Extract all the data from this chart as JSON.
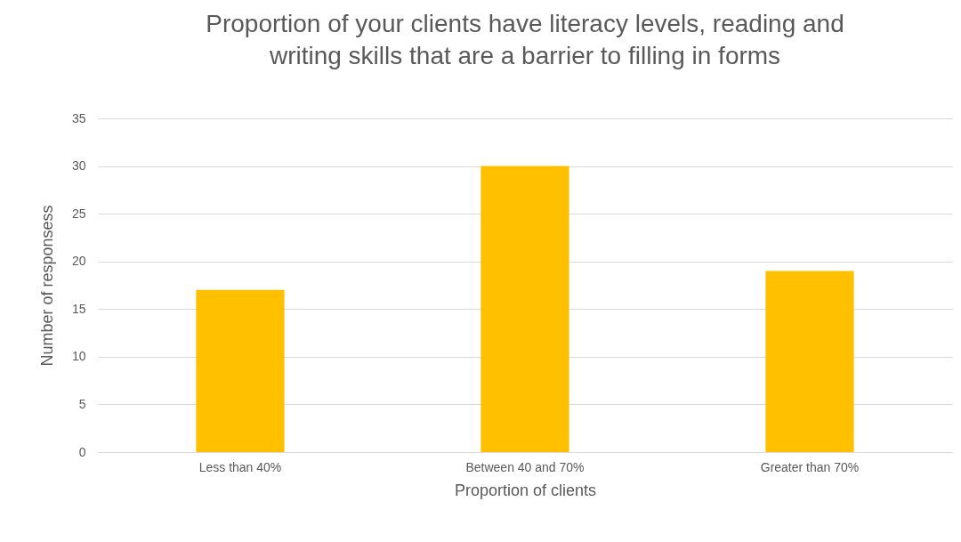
{
  "chart_data": {
    "type": "bar",
    "title": "Proportion of your clients have literacy levels, reading and writing skills that are a barrier to filling in forms",
    "xlabel": "Proportion of clients",
    "ylabel": "Number of responsess",
    "categories": [
      "Less than 40%",
      "Between 40 and 70%",
      "Greater than 70%"
    ],
    "values": [
      17,
      30,
      19
    ],
    "color": "#ffc000",
    "ylim": [
      0,
      35
    ],
    "yticks": [
      0,
      5,
      10,
      15,
      20,
      25,
      30,
      35
    ],
    "grid": "y"
  }
}
